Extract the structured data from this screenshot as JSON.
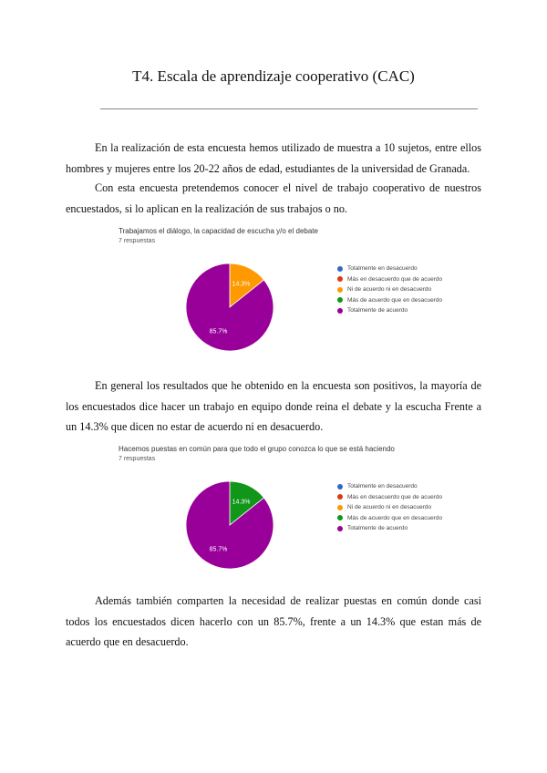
{
  "page": {
    "title": "T4. Escala de aprendizaje cooperativo (CAC)",
    "paragraphs": [
      "En la realización de esta encuesta hemos utilizado de muestra a 10 sujetos, entre ellos hombres y mujeres entre los 20-22 años de edad, estudiantes de la universidad de Granada.",
      "Con esta  encuesta pretendemos conocer el nivel de trabajo cooperativo de nuestros encuestados, si lo aplican en la realización de sus trabajos o no.",
      "En general los resultados que he obtenido en la encuesta son positivos, la mayoría de los encuestados dice hacer un trabajo en equipo donde reina el debate y la escucha Frente a un 14.3% que dicen no estar de acuerdo ni en desacuerdo.",
      "Además también comparten la necesidad de realizar puestas en común donde casi todos los encuestados dicen hacerlo con un  85.7%, frente a un 14.3% que estan más de acuerdo que en desacuerdo."
    ]
  },
  "chart_data": [
    {
      "type": "pie",
      "title": "Trabajamos el diálogo, la capacidad de escucha y/o el debate",
      "subtitle": "7 respuestas",
      "categories": [
        "Totalmente en desacuerdo",
        "Más en desacuerdo que de acuerdo",
        "Ni de acuerdo ni en desacuerdo",
        "Más de acuerdo que en desacuerdo",
        "Totalmente de acuerdo"
      ],
      "values": [
        0,
        0,
        14.3,
        0,
        85.7
      ],
      "data_labels": [
        "",
        "",
        "14.3%",
        "",
        "85.7%"
      ],
      "colors": [
        "#3366cc",
        "#dc3912",
        "#ff9900",
        "#109618",
        "#990099"
      ],
      "legend": "right"
    },
    {
      "type": "pie",
      "title": "Hacemos puestas en común para que todo el grupo conozca lo que se está haciendo",
      "subtitle": "7 respuestas",
      "categories": [
        "Totalmente en desacuerdo",
        "Más en desacuerdo que de acuerdo",
        "Ni de acuerdo ni en desacuerdo",
        "Más de acuerdo que en desacuerdo",
        "Totalmente de acuerdo"
      ],
      "values": [
        0,
        0,
        0,
        14.3,
        85.7
      ],
      "data_labels": [
        "",
        "",
        "",
        "14.3%",
        "85.7%"
      ],
      "colors": [
        "#3366cc",
        "#dc3912",
        "#ff9900",
        "#109618",
        "#990099"
      ],
      "legend": "right"
    }
  ]
}
